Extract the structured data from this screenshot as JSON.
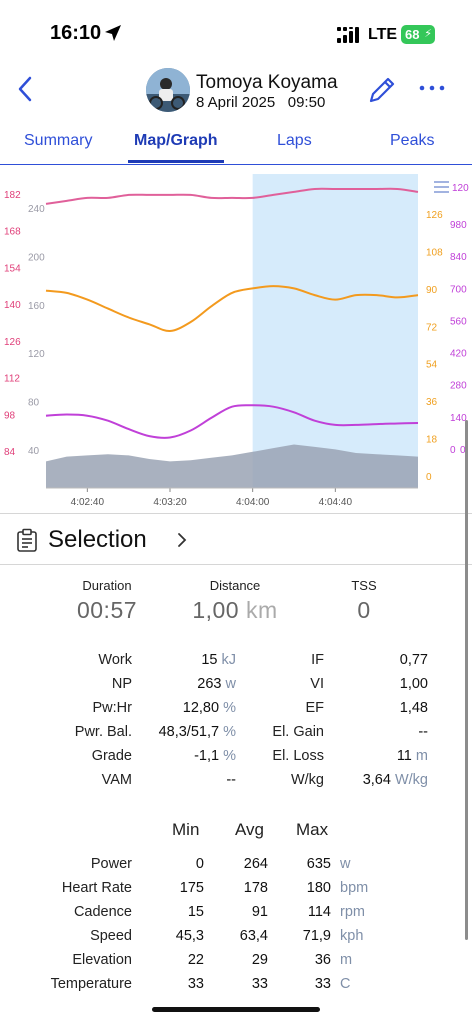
{
  "status": {
    "time": "16:10",
    "network": "LTE",
    "battery": "68"
  },
  "header": {
    "name": "Tomoya Koyama",
    "date": "8 April 2025",
    "time": "09:50"
  },
  "tabs": [
    {
      "label": "Summary",
      "active": false
    },
    {
      "label": "Map/Graph",
      "active": true
    },
    {
      "label": "Laps",
      "active": false
    },
    {
      "label": "Peaks",
      "active": false
    }
  ],
  "chart_data": {
    "type": "line",
    "x": [
      "4:02:20",
      "4:02:30",
      "4:02:40",
      "4:02:50",
      "4:03:00",
      "4:03:10",
      "4:03:20",
      "4:03:30",
      "4:03:40",
      "4:03:50",
      "4:04:00",
      "4:04:10",
      "4:04:20",
      "4:04:30",
      "4:04:40",
      "4:04:50",
      "4:05:00",
      "4:05:10",
      "4:05:20"
    ],
    "xticks": [
      "4:02:40",
      "4:03:20",
      "4:04:00",
      "4:04:40"
    ],
    "selection": [
      "4:04:00",
      "4:05:20"
    ],
    "axes": {
      "heart_rate": {
        "ticks": [
          "182",
          "168",
          "154",
          "140",
          "126",
          "112",
          "98",
          "84"
        ],
        "range": [
          80,
          185
        ],
        "color": "#e0407a"
      },
      "elevation": {
        "ticks": [
          "240",
          "200",
          "160",
          "120",
          "80",
          "40"
        ],
        "range": [
          0,
          260
        ],
        "color": "#9a9aa6"
      },
      "cadence": {
        "ticks": [
          "126",
          "108",
          "90",
          "72",
          "54",
          "36",
          "18",
          "0"
        ],
        "range": [
          0,
          140
        ],
        "color": "#f0a020"
      },
      "power": {
        "ticks": [
          "980",
          "840",
          "700",
          "560",
          "420",
          "280",
          "140",
          "0"
        ],
        "range": [
          0,
          1120
        ],
        "color": "#c040d8"
      },
      "speed": {
        "ticks": [
          "120",
          "0"
        ],
        "range": [
          0,
          120
        ],
        "color": "#c040d8"
      }
    },
    "series": [
      {
        "axis": "heart_rate",
        "color": "#e0609a",
        "values": [
          175,
          176,
          177,
          177,
          178,
          178,
          178,
          178,
          177,
          177,
          177,
          178,
          179,
          180,
          180,
          180,
          180,
          180,
          179
        ]
      },
      {
        "axis": "cadence",
        "color": "#f39a1e",
        "values": [
          88,
          87,
          84,
          80,
          76,
          73,
          70,
          74,
          81,
          87,
          89,
          90,
          89,
          86,
          84,
          86,
          86,
          85,
          86
        ]
      },
      {
        "axis": "power",
        "color": "#c040d8",
        "values": [
          258,
          262,
          258,
          240,
          210,
          185,
          180,
          205,
          250,
          290,
          295,
          290,
          270,
          240,
          225,
          225,
          228,
          230,
          232
        ]
      },
      {
        "axis": "elevation",
        "color": "#9aa3b4",
        "values": [
          22,
          26,
          27,
          28,
          27,
          24,
          22,
          23,
          25,
          27,
          30,
          33,
          36,
          34,
          32,
          29,
          28,
          27,
          26
        ]
      }
    ]
  },
  "selection": {
    "title": "Selection"
  },
  "summary": [
    {
      "label": "Duration",
      "value": "00:57",
      "unit": ""
    },
    {
      "label": "Distance",
      "value": "1,00",
      "unit": "km"
    },
    {
      "label": "TSS",
      "value": "0",
      "unit": ""
    }
  ],
  "stats_left": [
    {
      "label": "Work",
      "value": "15",
      "unit": "kJ"
    },
    {
      "label": "NP",
      "value": "263",
      "unit": "w"
    },
    {
      "label": "Pw:Hr",
      "value": "12,80",
      "unit": "%"
    },
    {
      "label": "Pwr. Bal.",
      "value": "48,3/51,7",
      "unit": "%"
    },
    {
      "label": "Grade",
      "value": "-1,1",
      "unit": "%"
    },
    {
      "label": "VAM",
      "value": "--",
      "unit": ""
    }
  ],
  "stats_right": [
    {
      "label": "IF",
      "value": "0,77",
      "unit": ""
    },
    {
      "label": "VI",
      "value": "1,00",
      "unit": ""
    },
    {
      "label": "EF",
      "value": "1,48",
      "unit": ""
    },
    {
      "label": "El. Gain",
      "value": "--",
      "unit": ""
    },
    {
      "label": "El. Loss",
      "value": "11",
      "unit": "m"
    },
    {
      "label": "W/kg",
      "value": "3,64",
      "unit": "W/kg"
    }
  ],
  "minmax": {
    "headers": [
      "Min",
      "Avg",
      "Max"
    ],
    "rows": [
      {
        "label": "Power",
        "min": "0",
        "avg": "264",
        "max": "635",
        "unit": "w"
      },
      {
        "label": "Heart Rate",
        "min": "175",
        "avg": "178",
        "max": "180",
        "unit": "bpm"
      },
      {
        "label": "Cadence",
        "min": "15",
        "avg": "91",
        "max": "114",
        "unit": "rpm"
      },
      {
        "label": "Speed",
        "min": "45,3",
        "avg": "63,4",
        "max": "71,9",
        "unit": "kph"
      },
      {
        "label": "Elevation",
        "min": "22",
        "avg": "29",
        "max": "36",
        "unit": "m"
      },
      {
        "label": "Temperature",
        "min": "33",
        "avg": "33",
        "max": "33",
        "unit": "C"
      }
    ]
  }
}
